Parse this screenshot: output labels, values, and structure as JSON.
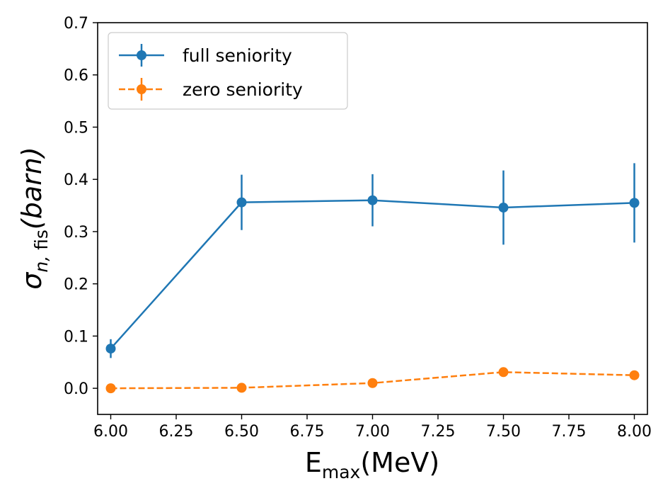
{
  "chart_data": {
    "type": "line",
    "title": "",
    "xlabel": {
      "main": "E",
      "sub": "max",
      "rest": "(MeV)"
    },
    "ylabel": {
      "sigma": "σ",
      "sub_n": "n",
      "sub_sep": ", ",
      "sub_fis": "fis",
      "rest": "(barn)"
    },
    "xlim": [
      5.95,
      8.05
    ],
    "ylim": [
      -0.05,
      0.7
    ],
    "xticks": [
      6.0,
      6.25,
      6.5,
      6.75,
      7.0,
      7.25,
      7.5,
      7.75,
      8.0
    ],
    "xtick_labels": [
      "6.00",
      "6.25",
      "6.50",
      "6.75",
      "7.00",
      "7.25",
      "7.50",
      "7.75",
      "8.00"
    ],
    "yticks": [
      0.0,
      0.1,
      0.2,
      0.3,
      0.4,
      0.5,
      0.6,
      0.7
    ],
    "ytick_labels": [
      "0.0",
      "0.1",
      "0.2",
      "0.3",
      "0.4",
      "0.5",
      "0.6",
      "0.7"
    ],
    "grid": false,
    "legend_position": "top-left",
    "series": [
      {
        "name": "full seniority",
        "color": "#1f77b4",
        "linestyle": "solid",
        "x": [
          6.0,
          6.5,
          7.0,
          7.5,
          8.0
        ],
        "y": [
          0.076,
          0.356,
          0.36,
          0.346,
          0.355
        ],
        "yerr": [
          0.018,
          0.053,
          0.05,
          0.071,
          0.076
        ]
      },
      {
        "name": "zero seniority",
        "color": "#ff7f0e",
        "linestyle": "dashed",
        "x": [
          6.0,
          6.5,
          7.0,
          7.5,
          8.0
        ],
        "y": [
          0.0,
          0.001,
          0.01,
          0.031,
          0.025
        ],
        "yerr": [
          0.0,
          0.0,
          0.0,
          0.0,
          0.0
        ]
      }
    ]
  }
}
